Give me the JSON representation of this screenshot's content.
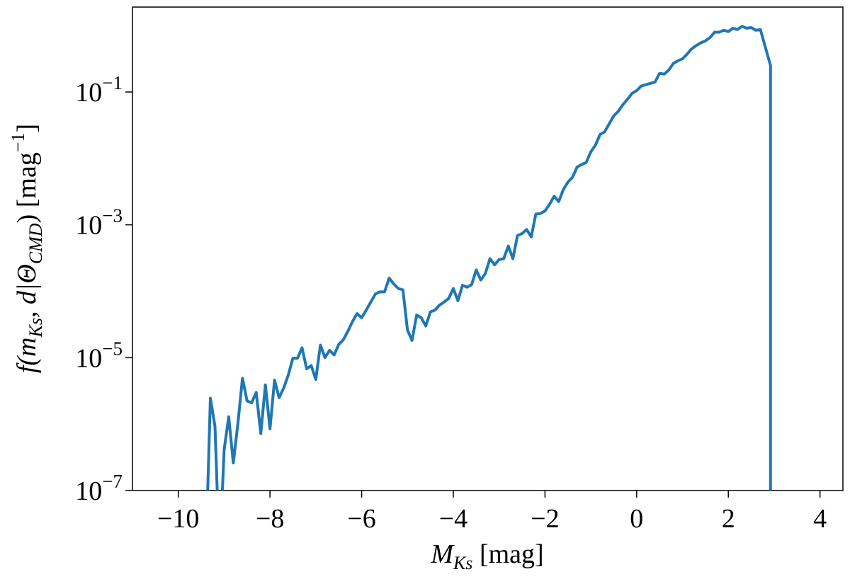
{
  "chart_data": {
    "type": "line",
    "log_y": true,
    "color": "#1f77b4",
    "xlabel": [
      "M",
      "Ks",
      " [mag]"
    ],
    "ylabel": [
      "f(m",
      "Ks",
      ", d|Θ",
      "CMD",
      ") [mag",
      "−1",
      "]"
    ],
    "xlim": [
      -11,
      4.5
    ],
    "ylim": [
      1e-07,
      1.9
    ],
    "xticks": [
      {
        "value": -10,
        "label": "−10"
      },
      {
        "value": -8,
        "label": "−8"
      },
      {
        "value": -6,
        "label": "−6"
      },
      {
        "value": -4,
        "label": "−4"
      },
      {
        "value": -2,
        "label": "−2"
      },
      0,
      2,
      4
    ],
    "yticks": [
      {
        "value": 1e-07,
        "base": "10",
        "exponent": "−7"
      },
      {
        "value": 1e-05,
        "base": "10",
        "exponent": "−5"
      },
      {
        "value": 0.001,
        "base": "10",
        "exponent": "−3"
      },
      {
        "value": 0.1,
        "base": "10",
        "exponent": "−1"
      }
    ],
    "x": [
      -9.4,
      -9.3,
      -9.2,
      -9.1,
      -9.0,
      -8.9,
      -8.8,
      -8.7,
      -8.6,
      -8.5,
      -8.4,
      -8.3,
      -8.2,
      -8.1,
      -8.0,
      -7.9,
      -7.8,
      -7.7,
      -7.6,
      -7.5,
      -7.4,
      -7.3,
      -7.2,
      -7.1,
      -7.0,
      -6.9,
      -6.8,
      -6.7,
      -6.6,
      -6.5,
      -6.4,
      -6.3,
      -6.2,
      -6.1,
      -6.0,
      -5.9,
      -5.8,
      -5.7,
      -5.6,
      -5.5,
      -5.4,
      -5.3,
      -5.2,
      -5.1,
      -5.0,
      -4.9,
      -4.8,
      -4.7,
      -4.6,
      -4.5,
      -4.4,
      -4.3,
      -4.2,
      -4.1,
      -4.0,
      -3.9,
      -3.8,
      -3.7,
      -3.6,
      -3.5,
      -3.4,
      -3.3,
      -3.2,
      -3.1,
      -3.0,
      -2.9,
      -2.8,
      -2.7,
      -2.6,
      -2.5,
      -2.4,
      -2.3,
      -2.2,
      -2.1,
      -2.0,
      -1.9,
      -1.8,
      -1.7,
      -1.6,
      -1.5,
      -1.4,
      -1.3,
      -1.2,
      -1.1,
      -1.0,
      -0.9,
      -0.8,
      -0.7,
      -0.6,
      -0.5,
      -0.4,
      -0.3,
      -0.2,
      -0.1,
      0.0,
      0.1,
      0.2,
      0.3,
      0.4,
      0.5,
      0.6,
      0.7,
      0.8,
      0.9,
      1.0,
      1.1,
      1.2,
      1.3,
      1.4,
      1.5,
      1.6,
      1.7,
      1.8,
      1.9,
      2.0,
      2.1,
      2.2,
      2.3,
      2.4,
      2.5,
      2.6,
      2.7,
      2.92,
      2.92
    ],
    "values": [
      1e-08,
      2.45e-06,
      9.3e-07,
      1e-08,
      4.1e-07,
      1.29e-06,
      2.6e-07,
      1.02e-06,
      4.9e-06,
      2.24e-06,
      2.09e-06,
      3e-06,
      7.2e-07,
      3.9e-06,
      8.5e-07,
      4.6e-06,
      2.5e-06,
      3.5e-06,
      5.5e-06,
      9.8e-06,
      9.8e-06,
      1.41e-05,
      6.8e-06,
      7.6e-06,
      4.7e-06,
      1.55e-05,
      1e-05,
      1.29e-05,
      1.1e-05,
      1.58e-05,
      1.86e-05,
      2.5e-05,
      3.5e-05,
      4.6e-05,
      4e-05,
      5.2e-05,
      6.9e-05,
      9.1e-05,
      9.8e-05,
      9.8e-05,
      0.000158,
      0.000129,
      0.00011,
      0.000105,
      2.6e-05,
      1.82e-05,
      4.4e-05,
      4e-05,
      3e-05,
      4.9e-05,
      5.2e-05,
      6.2e-05,
      6.9e-05,
      7.8e-05,
      0.00011,
      7.2e-05,
      0.000123,
      0.000115,
      0.000126,
      0.00021,
      0.000148,
      0.000186,
      0.00031,
      0.00025,
      0.0003,
      0.00031,
      0.00048,
      0.00031,
      0.00069,
      0.00074,
      0.00085,
      0.00066,
      0.00145,
      0.00148,
      0.00162,
      0.00204,
      0.0027,
      0.00224,
      0.0034,
      0.0044,
      0.0052,
      0.0074,
      0.0081,
      0.0087,
      0.0126,
      0.0158,
      0.0229,
      0.0251,
      0.0331,
      0.0437,
      0.0513,
      0.0646,
      0.0776,
      0.0955,
      0.105,
      0.123,
      0.129,
      0.135,
      0.141,
      0.191,
      0.186,
      0.214,
      0.269,
      0.295,
      0.316,
      0.372,
      0.447,
      0.501,
      0.55,
      0.589,
      0.661,
      0.794,
      0.794,
      0.851,
      0.813,
      0.912,
      0.871,
      0.977,
      0.912,
      0.933,
      0.851,
      0.871,
      0.251,
      1e-08
    ]
  }
}
